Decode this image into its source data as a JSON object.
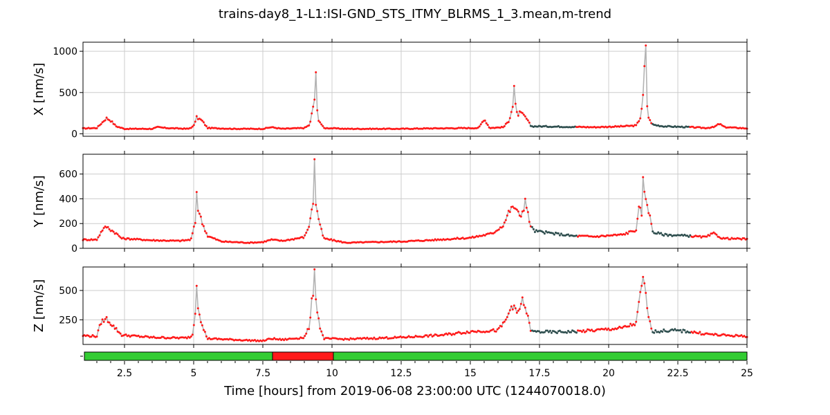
{
  "figure": {
    "title": "trains-day8_1-L1:ISI-GND_STS_ITMY_BLRMS_1_3.mean,m-trend",
    "xlabel": "Time [hours] from 2019-06-08 23:00:00 UTC (1244070018.0)"
  },
  "colors": {
    "unlocked_points": "#ff1a1a",
    "locked_points": "#2f4f4f",
    "trace_line": "#b3b3b3",
    "grid": "#cccccc",
    "segment_locked": "#33cc33",
    "segment_unlocked": "#ff1a1a"
  },
  "chart_data": [
    {
      "type": "scatter",
      "panel": "X",
      "ylabel": "X [nm/s]",
      "xlim": [
        1,
        25
      ],
      "ylim": [
        -30,
        1110
      ],
      "yticks": [
        0,
        500,
        1000
      ],
      "xticks": [
        2.5,
        5,
        7.5,
        10,
        12.5,
        15,
        17.5,
        20,
        22.5,
        25
      ],
      "grid": true,
      "baseline": [
        [
          1,
          65
        ],
        [
          1.5,
          70
        ],
        [
          1.7,
          140
        ],
        [
          1.85,
          190
        ],
        [
          2.0,
          160
        ],
        [
          2.2,
          90
        ],
        [
          2.5,
          60
        ],
        [
          3.5,
          60
        ],
        [
          3.7,
          80
        ],
        [
          4.0,
          70
        ],
        [
          4.8,
          60
        ],
        [
          5.0,
          90
        ],
        [
          5.1,
          200
        ],
        [
          5.3,
          160
        ],
        [
          5.5,
          70
        ],
        [
          6.5,
          60
        ],
        [
          7.5,
          60
        ],
        [
          7.8,
          80
        ],
        [
          8.2,
          60
        ],
        [
          9.0,
          70
        ],
        [
          9.2,
          110
        ],
        [
          9.3,
          300
        ],
        [
          9.4,
          480
        ],
        [
          9.5,
          180
        ],
        [
          9.7,
          70
        ],
        [
          10.5,
          60
        ],
        [
          12.5,
          60
        ],
        [
          13.5,
          65
        ],
        [
          15.3,
          70
        ],
        [
          15.5,
          180
        ],
        [
          15.7,
          70
        ],
        [
          16.2,
          80
        ],
        [
          16.4,
          160
        ],
        [
          16.5,
          300
        ],
        [
          16.6,
          400
        ],
        [
          16.7,
          220
        ],
        [
          16.8,
          260
        ],
        [
          17.0,
          200
        ],
        [
          17.2,
          90
        ],
        [
          17.5,
          90
        ],
        [
          18.5,
          85
        ],
        [
          19.5,
          80
        ],
        [
          20.5,
          90
        ],
        [
          21.0,
          100
        ],
        [
          21.15,
          200
        ],
        [
          21.3,
          600
        ],
        [
          21.45,
          180
        ],
        [
          21.6,
          110
        ],
        [
          22.0,
          90
        ],
        [
          23.0,
          80
        ],
        [
          23.5,
          70
        ],
        [
          23.8,
          80
        ],
        [
          24.0,
          120
        ],
        [
          24.2,
          80
        ],
        [
          25,
          65
        ]
      ],
      "spikes": [
        [
          9.4,
          745
        ],
        [
          21.35,
          1070
        ],
        [
          16.6,
          580
        ],
        [
          21.3,
          820
        ]
      ],
      "segments": [
        [
          1,
          17.15,
          "unlocked"
        ],
        [
          17.15,
          18.8,
          "locked"
        ],
        [
          18.8,
          21.55,
          "unlocked"
        ],
        [
          21.55,
          22.9,
          "locked"
        ],
        [
          22.9,
          25,
          "unlocked"
        ]
      ]
    },
    {
      "type": "scatter",
      "panel": "Y",
      "ylabel": "Y [nm/s]",
      "xlim": [
        1,
        25
      ],
      "ylim": [
        0,
        760
      ],
      "yticks": [
        0,
        200,
        400,
        600
      ],
      "xticks": [
        2.5,
        5,
        7.5,
        10,
        12.5,
        15,
        17.5,
        20,
        22.5,
        25
      ],
      "grid": true,
      "baseline": [
        [
          1,
          70
        ],
        [
          1.5,
          70
        ],
        [
          1.7,
          150
        ],
        [
          1.85,
          175
        ],
        [
          2.0,
          150
        ],
        [
          2.2,
          120
        ],
        [
          2.4,
          80
        ],
        [
          3.5,
          65
        ],
        [
          4.5,
          60
        ],
        [
          4.9,
          70
        ],
        [
          5.05,
          200
        ],
        [
          5.15,
          330
        ],
        [
          5.3,
          210
        ],
        [
          5.5,
          100
        ],
        [
          6,
          55
        ],
        [
          7,
          45
        ],
        [
          7.5,
          50
        ],
        [
          7.8,
          70
        ],
        [
          8.2,
          60
        ],
        [
          9.0,
          90
        ],
        [
          9.2,
          200
        ],
        [
          9.3,
          380
        ],
        [
          9.45,
          330
        ],
        [
          9.55,
          200
        ],
        [
          9.7,
          80
        ],
        [
          10.5,
          45
        ],
        [
          12.5,
          55
        ],
        [
          13.5,
          65
        ],
        [
          15,
          85
        ],
        [
          15.8,
          120
        ],
        [
          16.2,
          190
        ],
        [
          16.4,
          300
        ],
        [
          16.6,
          340
        ],
        [
          16.8,
          250
        ],
        [
          17.0,
          370
        ],
        [
          17.15,
          200
        ],
        [
          17.3,
          140
        ],
        [
          18,
          120
        ],
        [
          18.7,
          100
        ],
        [
          19.5,
          95
        ],
        [
          20.5,
          110
        ],
        [
          21.0,
          150
        ],
        [
          21.1,
          330
        ],
        [
          21.2,
          280
        ],
        [
          21.3,
          460
        ],
        [
          21.45,
          300
        ],
        [
          21.6,
          130
        ],
        [
          22.0,
          110
        ],
        [
          22.9,
          100
        ],
        [
          23.5,
          90
        ],
        [
          23.8,
          120
        ],
        [
          24.1,
          80
        ],
        [
          25,
          75
        ]
      ],
      "spikes": [
        [
          5.1,
          455
        ],
        [
          9.35,
          720
        ],
        [
          21.25,
          575
        ],
        [
          17.0,
          400
        ]
      ],
      "segments": [
        [
          1,
          17.2,
          "unlocked"
        ],
        [
          17.2,
          18.85,
          "locked"
        ],
        [
          18.85,
          21.55,
          "unlocked"
        ],
        [
          21.55,
          22.95,
          "locked"
        ],
        [
          22.95,
          25,
          "unlocked"
        ]
      ]
    },
    {
      "type": "scatter",
      "panel": "Z",
      "ylabel": "Z [nm/s]",
      "xlim": [
        1,
        25
      ],
      "ylim": [
        40,
        700
      ],
      "yticks": [
        250,
        500
      ],
      "xticks": [
        2.5,
        5,
        7.5,
        10,
        12.5,
        15,
        17.5,
        20,
        22.5,
        25
      ],
      "grid": true,
      "baseline": [
        [
          1,
          115
        ],
        [
          1.5,
          110
        ],
        [
          1.65,
          230
        ],
        [
          1.85,
          260
        ],
        [
          2.0,
          220
        ],
        [
          2.2,
          170
        ],
        [
          2.4,
          120
        ],
        [
          3.5,
          100
        ],
        [
          4.7,
          95
        ],
        [
          4.95,
          110
        ],
        [
          5.05,
          300
        ],
        [
          5.15,
          380
        ],
        [
          5.3,
          200
        ],
        [
          5.5,
          90
        ],
        [
          6.5,
          80
        ],
        [
          7.5,
          70
        ],
        [
          7.8,
          90
        ],
        [
          8.2,
          80
        ],
        [
          9.0,
          100
        ],
        [
          9.2,
          200
        ],
        [
          9.3,
          500
        ],
        [
          9.4,
          450
        ],
        [
          9.55,
          200
        ],
        [
          9.7,
          90
        ],
        [
          10.5,
          85
        ],
        [
          12.5,
          100
        ],
        [
          14,
          120
        ],
        [
          15,
          150
        ],
        [
          16,
          160
        ],
        [
          16.3,
          250
        ],
        [
          16.5,
          380
        ],
        [
          16.7,
          300
        ],
        [
          16.9,
          420
        ],
        [
          17.05,
          300
        ],
        [
          17.2,
          150
        ],
        [
          18,
          145
        ],
        [
          18.8,
          150
        ],
        [
          19.5,
          160
        ],
        [
          20.5,
          180
        ],
        [
          21.0,
          220
        ],
        [
          21.15,
          500
        ],
        [
          21.3,
          550
        ],
        [
          21.45,
          250
        ],
        [
          21.6,
          150
        ],
        [
          22.3,
          160
        ],
        [
          22.9,
          150
        ],
        [
          23.5,
          130
        ],
        [
          24,
          120
        ],
        [
          25,
          110
        ]
      ],
      "spikes": [
        [
          5.1,
          540
        ],
        [
          9.35,
          680
        ],
        [
          21.25,
          615
        ]
      ],
      "segments": [
        [
          1,
          17.2,
          "unlocked"
        ],
        [
          17.2,
          18.85,
          "locked"
        ],
        [
          18.85,
          21.55,
          "unlocked"
        ],
        [
          21.55,
          22.95,
          "locked"
        ],
        [
          22.95,
          25,
          "unlocked"
        ]
      ]
    },
    {
      "type": "bar",
      "panel": "state-segments",
      "xlim": [
        1,
        25
      ],
      "segments": [
        [
          1.05,
          7.85,
          "locked"
        ],
        [
          7.85,
          10.05,
          "unlocked"
        ],
        [
          10.05,
          25,
          "locked"
        ]
      ]
    }
  ]
}
